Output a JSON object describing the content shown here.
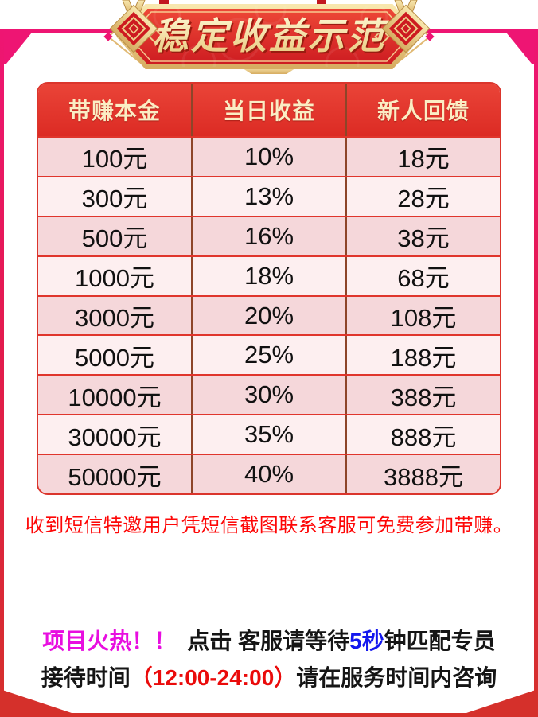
{
  "banner": {
    "title": "稳定收益示范"
  },
  "table": {
    "headers": [
      "带赚本金",
      "当日收益",
      "新人回馈"
    ],
    "rows": [
      [
        "100元",
        "10%",
        "18元"
      ],
      [
        "300元",
        "13%",
        "28元"
      ],
      [
        "500元",
        "16%",
        "38元"
      ],
      [
        "1000元",
        "18%",
        "68元"
      ],
      [
        "3000元",
        "20%",
        "108元"
      ],
      [
        "5000元",
        "25%",
        "188元"
      ],
      [
        "10000元",
        "30%",
        "388元"
      ],
      [
        "30000元",
        "35%",
        "888元"
      ],
      [
        "50000元",
        "40%",
        "3888元"
      ]
    ]
  },
  "notice": {
    "text": "收到短信特邀用户凭短信截图联系客服可免费参加带赚。"
  },
  "footer": {
    "line1": {
      "hot": "项目火热！！",
      "mid": "点击 客服请等待",
      "seconds": "5秒",
      "tail": "钟匹配专员"
    },
    "line2": {
      "lead": "接待时间",
      "time": "（12:00-24:00）",
      "tail": "请在服务时间内咨询"
    }
  },
  "colors": {
    "frame_pink": "#ee1573",
    "frame_mid": "#e31a4e",
    "frame_red": "#d5302b",
    "table_border": "#db352c",
    "header_bg_top": "#ea4438",
    "header_bg_bot": "#dc2b24",
    "header_text": "#fbedc4",
    "row_dark": "#f5d7da",
    "row_light": "#fdeff0",
    "divider_brown": "#8d4529",
    "row_line": "#e0352c",
    "notice_red": "#fe0606",
    "hot_magenta": "#e80ee0",
    "seconds_blue": "#1317ee",
    "time_red": "#ea0b0b",
    "cell_text": "#111111"
  }
}
